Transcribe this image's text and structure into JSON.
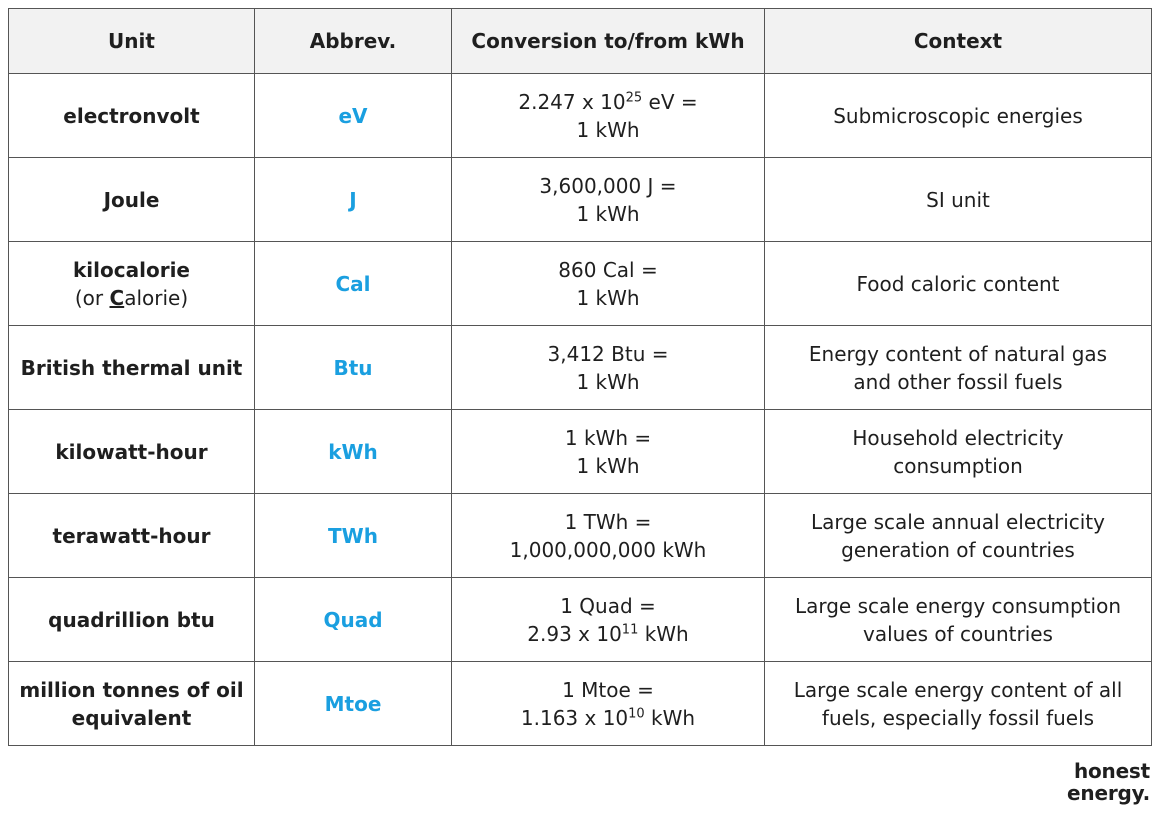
{
  "table": {
    "headers": [
      "Unit",
      "Abbrev.",
      "Conversion to/from kWh",
      "Context"
    ],
    "rows": [
      {
        "unit": "electronvolt",
        "abbrev": "eV",
        "conversion_line1": [
          "2.247 x 10",
          "25",
          " eV ="
        ],
        "conversion_line2": "1 kWh",
        "context_line1": "Submicroscopic energies",
        "context_line2": ""
      },
      {
        "unit": "Joule",
        "abbrev": "J",
        "conversion_line1": [
          "3,600,000 J ="
        ],
        "conversion_line2": "1 kWh",
        "context_line1": "SI unit",
        "context_line2": ""
      },
      {
        "unit": "kilocalorie",
        "unit_sub": [
          "(or ",
          "C",
          "alorie)"
        ],
        "abbrev": "Cal",
        "conversion_line1": [
          "860 Cal ="
        ],
        "conversion_line2": "1 kWh",
        "context_line1": "Food caloric content",
        "context_line2": ""
      },
      {
        "unit": "British thermal unit",
        "abbrev": "Btu",
        "conversion_line1": [
          "3,412 Btu ="
        ],
        "conversion_line2": "1 kWh",
        "context_line1": "Energy content of natural gas",
        "context_line2": "and other fossil fuels"
      },
      {
        "unit": "kilowatt-hour",
        "abbrev": "kWh",
        "conversion_line1": [
          "1 kWh ="
        ],
        "conversion_line2": "1 kWh",
        "context_line1": "Household electricity",
        "context_line2": "consumption"
      },
      {
        "unit": "terawatt-hour",
        "abbrev": "TWh",
        "conversion_line1": [
          "1 TWh ="
        ],
        "conversion_line2": "1,000,000,000 kWh",
        "context_line1": "Large scale annual electricity",
        "context_line2": "generation of countries"
      },
      {
        "unit": "quadrillion btu",
        "abbrev": "Quad",
        "conversion_line1": [
          "1 Quad ="
        ],
        "conversion_line2": [
          "2.93 x 10",
          "11",
          " kWh"
        ],
        "context_line1": "Large scale energy consumption",
        "context_line2": "values of countries"
      },
      {
        "unit": "million tonnes of oil",
        "unit_line2": "equivalent",
        "abbrev": "Mtoe",
        "conversion_line1": [
          "1 Mtoe ="
        ],
        "conversion_line2": [
          "1.163 x 10",
          "10",
          " kWh"
        ],
        "context_line1": "Large scale energy content of all",
        "context_line2": "fuels, especially fossil fuels"
      }
    ]
  },
  "logo": {
    "line1": "honest",
    "line2": "energy."
  },
  "colors": {
    "abbrev": "#1a9fe0",
    "header_bg": "#f2f2f2",
    "border": "#555555"
  }
}
